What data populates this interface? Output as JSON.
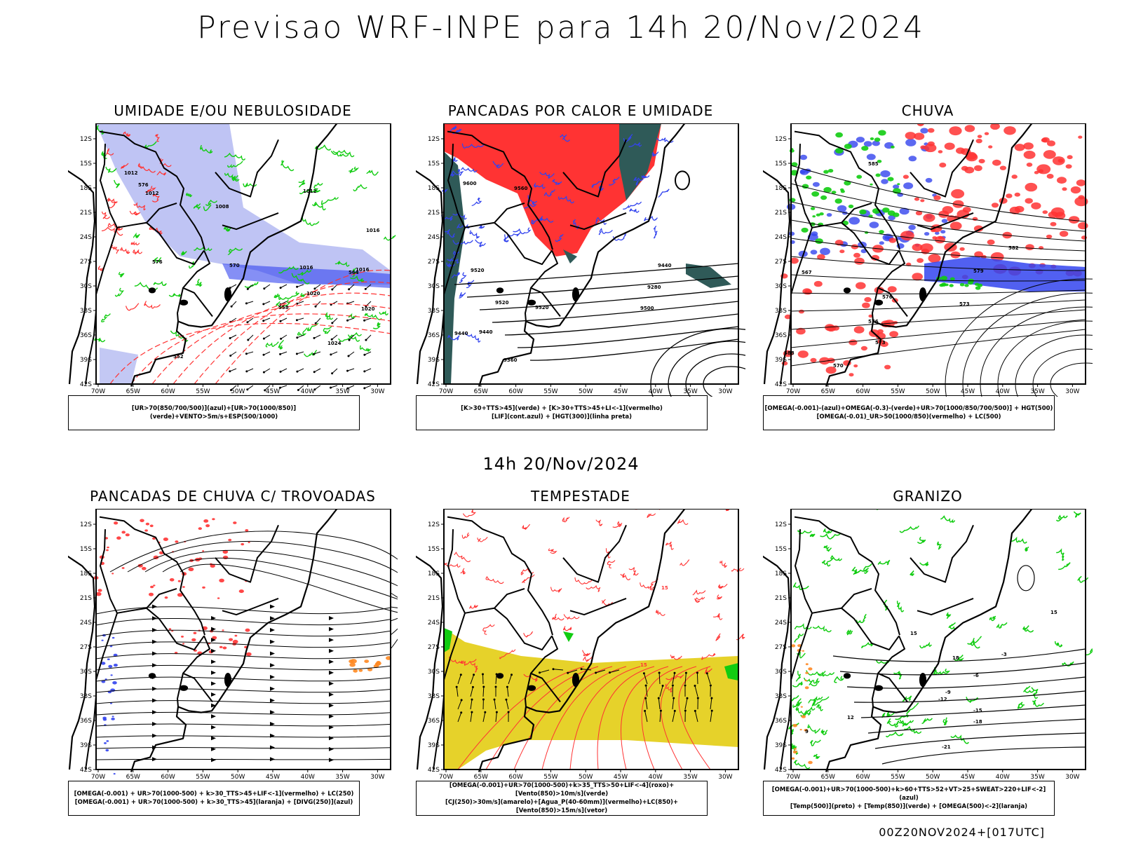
{
  "main_title": "Previsao WRF-INPE  para 14h 20/Nov/2024",
  "mid_title": "14h 20/Nov/2024",
  "footer": "00Z20NOV2024+[017UTC]",
  "lat_ticks": [
    "12S",
    "15S",
    "18S",
    "21S",
    "24S",
    "27S",
    "30S",
    "33S",
    "36S",
    "39S",
    "42S"
  ],
  "lon_ticks": [
    "70W",
    "65W",
    "60W",
    "55W",
    "50W",
    "45W",
    "40W",
    "35W",
    "30W"
  ],
  "panels": [
    {
      "title": "UMIDADE E/OU NEBULOSIDADE",
      "legend": [
        "[UR>70(850/700/500)](azul)+[UR>70(1000/850)](verde)+VENTO>5m/s+ESP(500/1000)"
      ],
      "contour_labels": [
        "1012",
        "1012",
        "1008",
        "1012",
        "1016",
        "1016",
        "1020",
        "1020",
        "1024",
        "1016",
        "576",
        "576",
        "570",
        "564",
        "558",
        "552"
      ]
    },
    {
      "title": "PANCADAS POR CALOR E UMIDADE",
      "legend": [
        "[K>30+TTS>45](verde) + [K>30+TTS>45+LI<-1](vermelho)",
        "[LIF](cont.azul) + [HGT(300)](linha preta)"
      ],
      "contour_labels": [
        "9600",
        "9560",
        "9520",
        "9440",
        "9280",
        "9500",
        "9520",
        "9440",
        "9520",
        "9440",
        "9360"
      ]
    },
    {
      "title": "CHUVA",
      "legend": [
        "[OMEGA(-0.001)-(azul)+OMEGA(-0.3)-(verde)+UR>70(1000/850/700/500)] + HGT(500)",
        "[OMEGA(-0.01)_UR>50(1000/850)(vermelho) + LC(500)"
      ],
      "contour_labels": [
        "582",
        "579",
        "576",
        "576",
        "573",
        "573",
        "570",
        "567",
        "588",
        "585"
      ]
    },
    {
      "title": "PANCADAS DE CHUVA C/ TROVOADAS",
      "legend": [
        "[OMEGA(-0.001) + UR>70(1000-500) + k>30_TTS>45+LIF<-1](vermelho) + LC(250)",
        "[OMEGA(-0.001) + UR>70(1000-500) + k>30_TTS>45](laranja) + [DIVG(250)](azul)"
      ],
      "contour_labels": []
    },
    {
      "title": "TEMPESTADE",
      "legend": [
        "[OMEGA(-0.001)+UR>70(1000-500)+k>35_TTS>50+LIF<-4](roxo)+[Vento(850)>10m/s](verde)",
        "[CJ(250)>30m/s](amarelo)+[Agua_P(40-60mm)](vermelho)+LC(850)+[Vento(850)>15m/s](vetor)"
      ],
      "contour_labels": [
        "15",
        "15"
      ]
    },
    {
      "title": "GRANIZO",
      "legend": [
        "[OMEGA(-0.001)+UR>70(1000-500)+k>60+TTS>52+VT>25+SWEAT>220+LIF<-2](azul)",
        "[Temp(500)](preto) + [Temp(850)](verde) + [OMEGA(500)<-2](laranja)"
      ],
      "contour_labels": [
        "-3",
        "-6",
        "-9",
        "-12",
        "-15",
        "-18",
        "-21",
        "15",
        "18",
        "12",
        "9",
        "15"
      ]
    }
  ],
  "colors": {
    "blue": "#3344ee",
    "green": "#11cc11",
    "red": "#ff3333",
    "orange": "#ff8822",
    "yellow": "#e6d22a",
    "lavender": "#aab0f0",
    "darkteal": "#2f5a58"
  }
}
